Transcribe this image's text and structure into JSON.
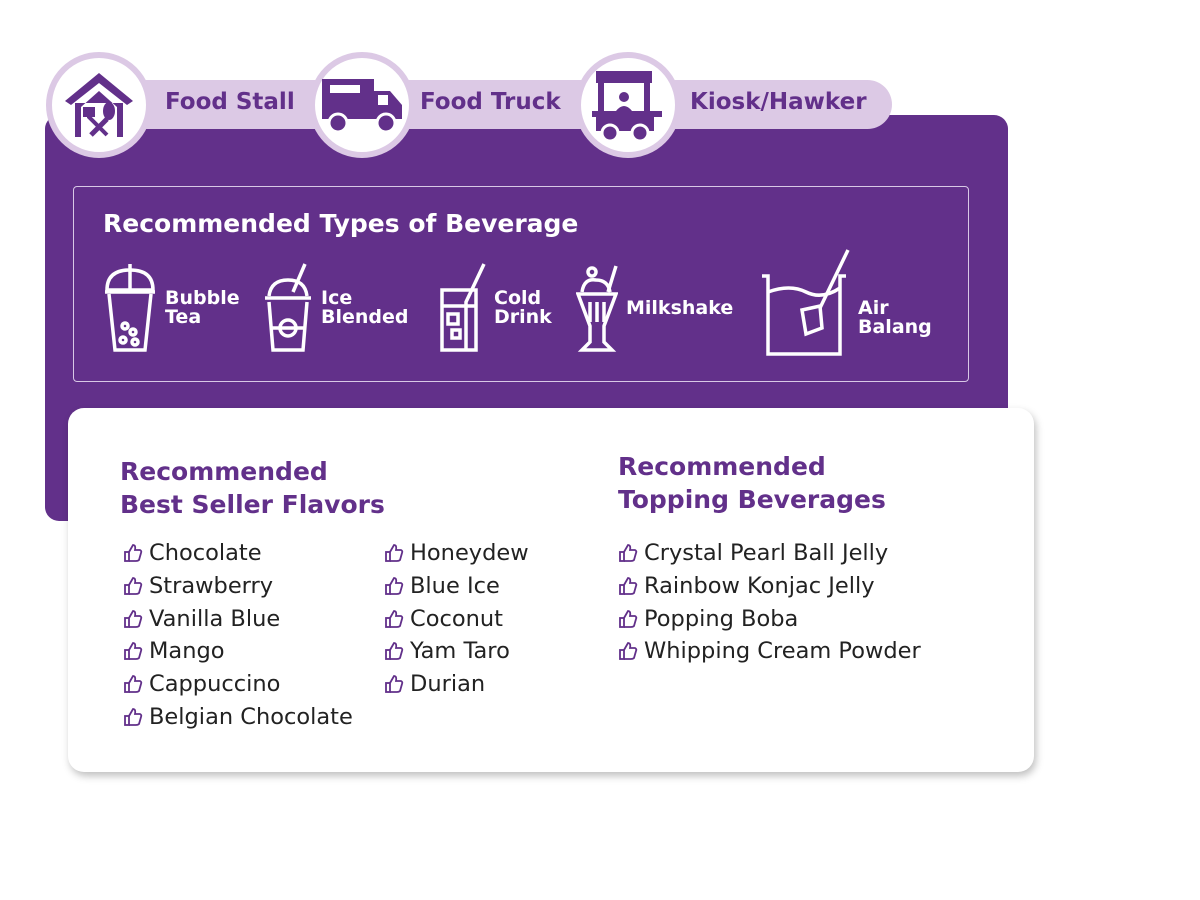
{
  "colors": {
    "primary": "#62308a",
    "tab_bg": "#dcc9e5"
  },
  "tabs": [
    {
      "label": "Food Stall",
      "icon": "house-utensils-icon"
    },
    {
      "label": "Food Truck",
      "icon": "food-truck-icon"
    },
    {
      "label": "Kiosk/Hawker",
      "icon": "hawker-cart-icon"
    }
  ],
  "beverages": {
    "title": "Recommended Types of Beverage",
    "items": [
      {
        "line1": "Bubble",
        "line2": "Tea",
        "icon": "bubble-tea-icon"
      },
      {
        "line1": "Ice",
        "line2": "Blended",
        "icon": "ice-blended-icon"
      },
      {
        "line1": "Cold",
        "line2": "Drink",
        "icon": "cold-drink-icon"
      },
      {
        "line1": "Milkshake",
        "line2": "",
        "icon": "milkshake-icon"
      },
      {
        "line1": "Air",
        "line2": "Balang",
        "icon": "air-balang-icon"
      }
    ]
  },
  "flavors": {
    "title1": "Recommended",
    "title2": "Best Seller Flavors",
    "col1": [
      "Chocolate",
      "Strawberry",
      "Vanilla Blue",
      "Mango",
      "Cappuccino",
      "Belgian Chocolate"
    ],
    "col2": [
      "Honeydew",
      "Blue Ice",
      "Coconut",
      "Yam Taro",
      "Durian"
    ]
  },
  "toppings": {
    "title1": "Recommended",
    "title2": "Topping Beverages",
    "items": [
      "Crystal Pearl Ball Jelly",
      "Rainbow Konjac Jelly",
      "Popping Boba",
      "Whipping Cream Powder"
    ]
  }
}
